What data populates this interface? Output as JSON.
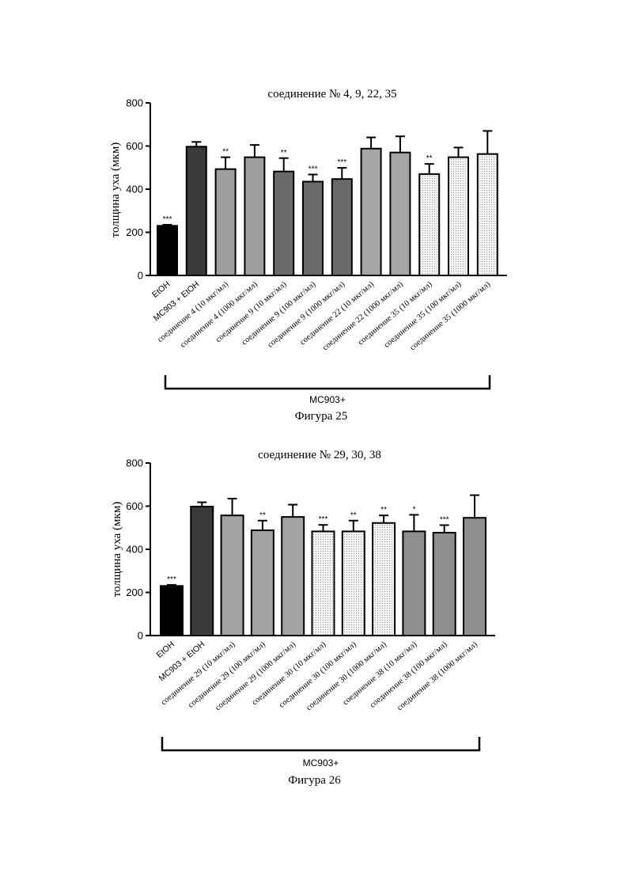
{
  "chart_data": [
    {
      "type": "bar",
      "title": "соединение № 4, 9, 22, 35",
      "ylabel": "толщина уха (мкм)",
      "xlabel": "",
      "ylim": [
        0,
        800
      ],
      "yticks": [
        0,
        200,
        400,
        600,
        800
      ],
      "categories": [
        "EtOH",
        "MC903 + EtOH",
        "соединение 4 (10 мкг/мл)",
        "соединение 4 (1000 мкг/мл)",
        "соединение 9 (10 мкг/мл)",
        "соединение 9 (100 мкг/мл)",
        "соединение 9 (1000 мкг/мл)",
        "соединение 22 (10 мкг/мл)",
        "соединение 22 (1000 мкг/мл)",
        "соединение 35 (10 мкг/мл)",
        "соединение 35 (100 мкг/мл)",
        "соединение 35 (1000 мкг/мл)"
      ],
      "values": [
        230,
        597,
        493,
        548,
        482,
        435,
        447,
        588,
        570,
        470,
        548,
        563
      ],
      "errors": [
        5,
        22,
        55,
        57,
        62,
        33,
        52,
        52,
        75,
        47,
        45,
        107
      ],
      "significance": [
        "***",
        "",
        "**",
        "",
        "**",
        "***",
        "***",
        "",
        "",
        "**",
        "",
        ""
      ],
      "fills": [
        "#000000",
        "#3a3a3a",
        "#9d9d9d",
        "#9d9d9d",
        "#6a6a6a",
        "#6a6a6a",
        "#6a6a6a",
        "#a5a5a5",
        "#a5a5a5",
        "#e8e8e8",
        "#e8e8e8",
        "#e8e8e8"
      ],
      "group_label": "MC903+",
      "caption": "Фигура 25"
    },
    {
      "type": "bar",
      "title": "соединение № 29, 30, 38",
      "ylabel": "толщина уха (мкм)",
      "xlabel": "",
      "ylim": [
        0,
        800
      ],
      "yticks": [
        0,
        200,
        400,
        600,
        800
      ],
      "categories": [
        "EtOH",
        "MC903 + EtOH",
        "соединение 29 (10 мкг/мл)",
        "соединение 29 (100 мкг/мл)",
        "соединение 29 (1000 мкг/мл)",
        "соединение 30 (10 мкг/мл)",
        "соединение 30 (100 мкг/мл)",
        "соединение 30 (1000 мкг/мл)",
        "соединение 38 (10 мкг/мл)",
        "соединение 38 (100 мкг/мл)",
        "соединение 38 (1000 мкг/мл)"
      ],
      "values": [
        230,
        598,
        557,
        488,
        550,
        483,
        483,
        522,
        483,
        477,
        546
      ],
      "errors": [
        5,
        20,
        78,
        45,
        57,
        30,
        50,
        35,
        77,
        35,
        105
      ],
      "significance": [
        "***",
        "",
        "",
        "**",
        "",
        "***",
        "**",
        "**",
        "*",
        "***",
        ""
      ],
      "fills": [
        "#000000",
        "#3a3a3a",
        "#a3a3a3",
        "#a3a3a3",
        "#a3a3a3",
        "#ececec",
        "#ececec",
        "#ececec",
        "#8e8e8e",
        "#8e8e8e",
        "#8e8e8e"
      ],
      "group_label": "MC903+",
      "caption": "Фигура 26"
    }
  ]
}
